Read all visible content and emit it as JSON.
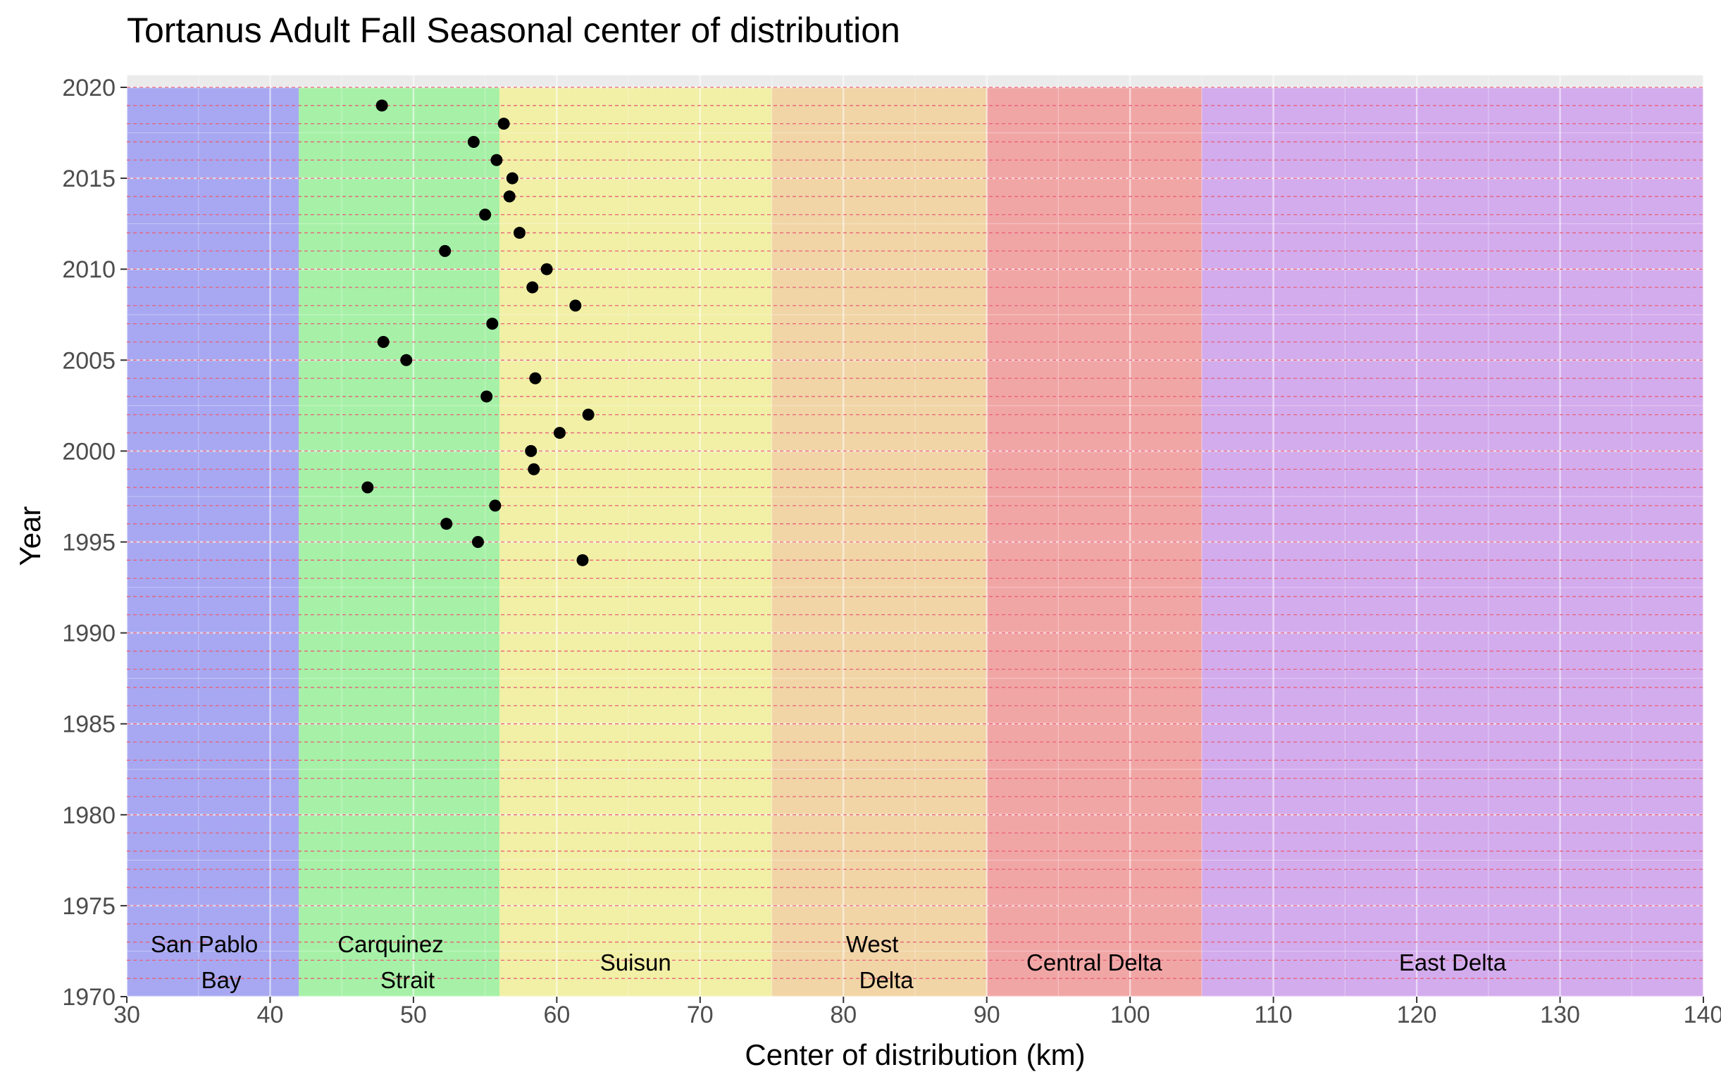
{
  "chart_data": {
    "type": "scatter",
    "title": "Tortanus Adult Fall Seasonal center of distribution",
    "xlabel": "Center of distribution (km)",
    "ylabel": "Year",
    "xlim": [
      30,
      140
    ],
    "ylim": [
      1970,
      2020
    ],
    "x_ticks": [
      30,
      40,
      50,
      60,
      70,
      80,
      90,
      100,
      110,
      120,
      130,
      140
    ],
    "y_ticks": [
      1970,
      1975,
      1980,
      1985,
      1990,
      1995,
      2000,
      2005,
      2010,
      2015,
      2020
    ],
    "grid": true,
    "point_color": "#000000",
    "year_line_color": "#e8607a",
    "regions": [
      {
        "label_lines": [
          "San Pablo",
          "Bay"
        ],
        "start": 30,
        "end": 42,
        "color": "#a7a8f1"
      },
      {
        "label_lines": [
          "Carquinez",
          "Strait"
        ],
        "start": 42,
        "end": 56,
        "color": "#a6f1a7"
      },
      {
        "label_lines": [
          "Suisun"
        ],
        "start": 56,
        "end": 75,
        "color": "#f1f0a6"
      },
      {
        "label_lines": [
          "West",
          "Delta"
        ],
        "start": 75,
        "end": 90,
        "color": "#f1d5a6"
      },
      {
        "label_lines": [
          "Central Delta"
        ],
        "start": 90,
        "end": 105,
        "color": "#f1a6a6"
      },
      {
        "label_lines": [
          "East Delta"
        ],
        "start": 105,
        "end": 140,
        "color": "#d3aced"
      }
    ],
    "points": [
      {
        "year": 1994,
        "km": 61.8
      },
      {
        "year": 1995,
        "km": 54.5
      },
      {
        "year": 1996,
        "km": 52.3
      },
      {
        "year": 1997,
        "km": 55.7
      },
      {
        "year": 1998,
        "km": 46.8
      },
      {
        "year": 1999,
        "km": 58.4
      },
      {
        "year": 2000,
        "km": 58.2
      },
      {
        "year": 2001,
        "km": 60.2
      },
      {
        "year": 2002,
        "km": 62.2
      },
      {
        "year": 2003,
        "km": 55.1
      },
      {
        "year": 2004,
        "km": 58.5
      },
      {
        "year": 2005,
        "km": 49.5
      },
      {
        "year": 2006,
        "km": 47.9
      },
      {
        "year": 2007,
        "km": 55.5
      },
      {
        "year": 2008,
        "km": 61.3
      },
      {
        "year": 2009,
        "km": 58.3
      },
      {
        "year": 2010,
        "km": 59.3
      },
      {
        "year": 2011,
        "km": 52.2
      },
      {
        "year": 2012,
        "km": 57.4
      },
      {
        "year": 2013,
        "km": 55.0
      },
      {
        "year": 2014,
        "km": 56.7
      },
      {
        "year": 2015,
        "km": 56.9
      },
      {
        "year": 2016,
        "km": 55.8
      },
      {
        "year": 2017,
        "km": 54.2
      },
      {
        "year": 2018,
        "km": 56.3
      },
      {
        "year": 2019,
        "km": 47.8
      }
    ]
  }
}
